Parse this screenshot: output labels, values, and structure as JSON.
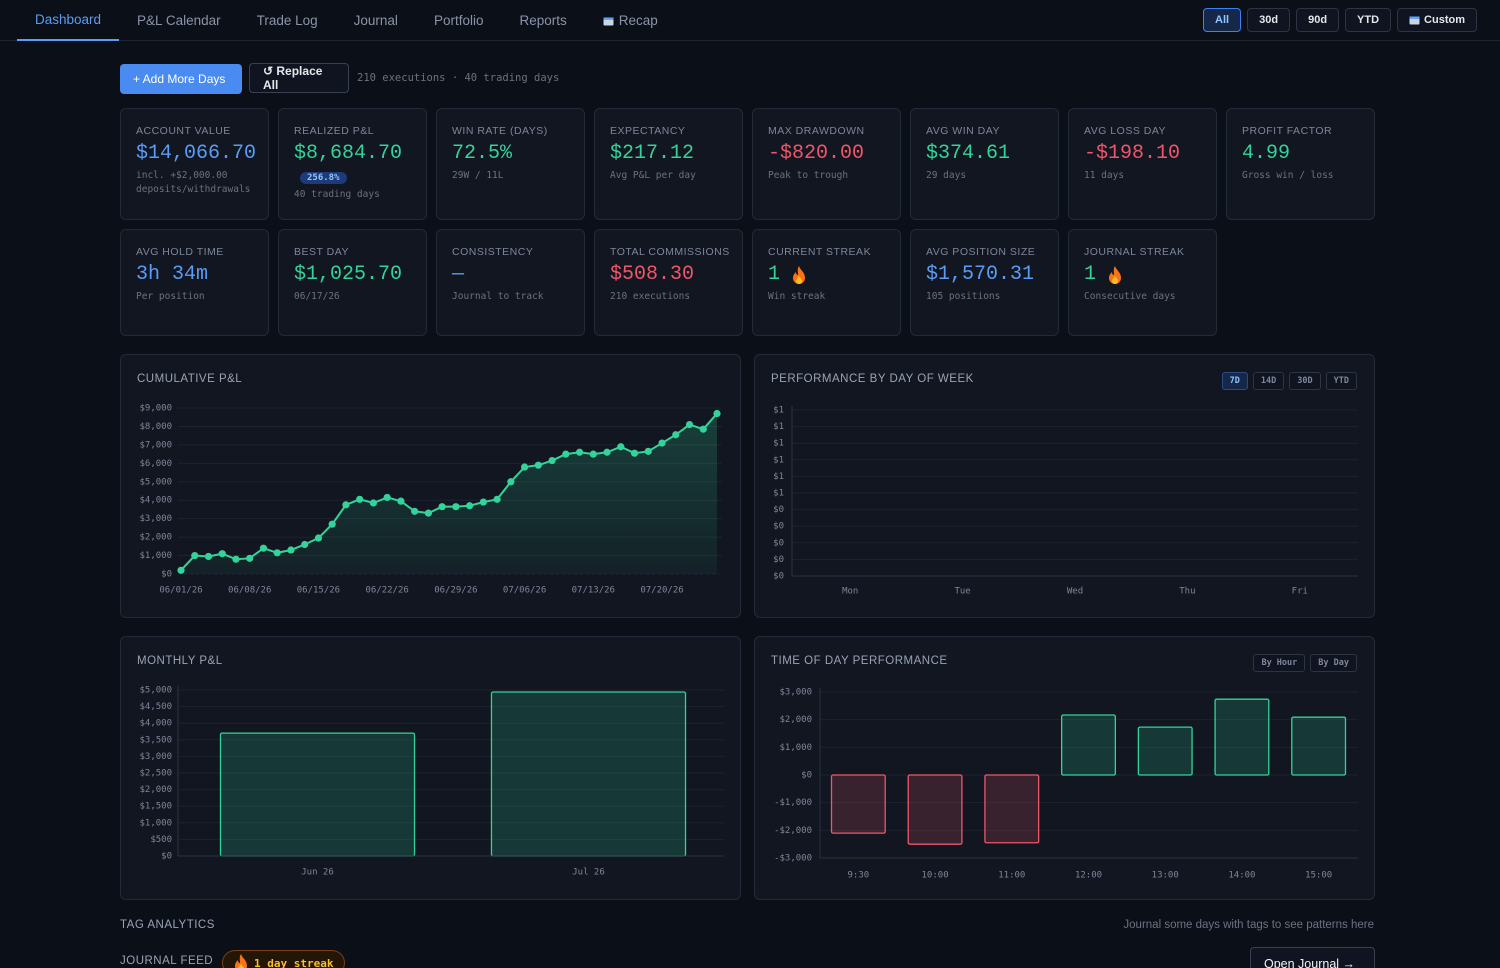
{
  "nav": {
    "tabs": [
      "Dashboard",
      "P&L Calendar",
      "Trade Log",
      "Journal",
      "Portfolio",
      "Reports",
      "Recap"
    ],
    "active_tab": 0,
    "ranges": [
      "All",
      "30d",
      "90d",
      "YTD",
      "Custom"
    ],
    "active_range": 0
  },
  "toolbar": {
    "add": "+ Add More Days",
    "replace": "↺ Replace All",
    "summary": "210 executions · 40 trading days"
  },
  "stats": [
    {
      "label": "ACCOUNT VALUE",
      "value": "$14,066.70",
      "sub": "incl. +$2,000.00 deposits/withdrawals",
      "color": "#5b9cf6"
    },
    {
      "label": "REALIZED P&L",
      "value": "$8,684.70",
      "badge": "256.8%",
      "sub": "40 trading days",
      "color": "#34d399"
    },
    {
      "label": "WIN RATE (DAYS)",
      "value": "72.5%",
      "sub": "29W / 11L",
      "color": "#34d399"
    },
    {
      "label": "EXPECTANCY",
      "value": "$217.12",
      "sub": "Avg P&L per day",
      "color": "#34d399"
    },
    {
      "label": "MAX DRAWDOWN",
      "value": "-$820.00",
      "sub": "Peak to trough",
      "color": "#f0566a"
    },
    {
      "label": "AVG WIN DAY",
      "value": "$374.61",
      "sub": "29 days",
      "color": "#34d399"
    },
    {
      "label": "AVG LOSS DAY",
      "value": "-$198.10",
      "sub": "11 days",
      "color": "#f0566a"
    },
    {
      "label": "PROFIT FACTOR",
      "value": "4.99",
      "sub": "Gross win / loss",
      "color": "#34d399"
    },
    {
      "label": "AVG HOLD TIME",
      "value": "3h 34m",
      "sub": "Per position",
      "color": "#5b9cf6"
    },
    {
      "label": "BEST DAY",
      "value": "$1,025.70",
      "sub": "06/17/26",
      "color": "#34d399"
    },
    {
      "label": "CONSISTENCY",
      "value": "—",
      "sub": "Journal to track",
      "color": "#5b9cf6"
    },
    {
      "label": "TOTAL COMMISSIONS",
      "value": "$508.30",
      "sub": "210 executions",
      "color": "#f0566a"
    },
    {
      "label": "CURRENT STREAK",
      "value": "1",
      "sub": "Win streak",
      "color": "#34d399"
    },
    {
      "label": "AVG POSITION SIZE",
      "value": "$1,570.31",
      "sub": "105 positions",
      "color": "#5b9cf6"
    },
    {
      "label": "JOURNAL STREAK",
      "value": "1",
      "sub": "Consecutive days",
      "color": "#34d399"
    }
  ],
  "chart_data": [
    {
      "type": "area",
      "title": "CUMULATIVE P&L",
      "color": "#34d399",
      "grid": true,
      "categories": [
        "06/01/26",
        null,
        null,
        null,
        null,
        "06/08/26",
        null,
        null,
        null,
        null,
        "06/15/26",
        null,
        null,
        null,
        null,
        "06/22/26",
        null,
        null,
        null,
        null,
        "06/29/26",
        null,
        null,
        null,
        null,
        "07/06/26",
        null,
        null,
        null,
        null,
        "07/13/26",
        null,
        null,
        null,
        null,
        "07/20/26",
        null,
        null,
        null,
        null
      ],
      "values": [
        200,
        1000,
        950,
        1100,
        800,
        850,
        1400,
        1150,
        1300,
        1600,
        1950,
        2700,
        3750,
        4050,
        3850,
        4150,
        3950,
        3400,
        3300,
        3650,
        3650,
        3700,
        3900,
        4050,
        5000,
        5800,
        5900,
        6150,
        6500,
        6600,
        6500,
        6600,
        6900,
        6550,
        6650,
        7100,
        7550,
        8100,
        7850,
        8700
      ],
      "ylim": [
        0,
        9000
      ],
      "yticks": [
        {
          "value": 0,
          "label": "$0"
        },
        {
          "value": 1000,
          "label": "$1,000"
        },
        {
          "value": 2000,
          "label": "$2,000"
        },
        {
          "value": 3000,
          "label": "$3,000"
        },
        {
          "value": 4000,
          "label": "$4,000"
        },
        {
          "value": 5000,
          "label": "$5,000"
        },
        {
          "value": 6000,
          "label": "$6,000"
        },
        {
          "value": 7000,
          "label": "$7,000"
        },
        {
          "value": 8000,
          "label": "$8,000"
        },
        {
          "value": 9000,
          "label": "$9,000"
        }
      ]
    },
    {
      "type": "bar",
      "title": "PERFORMANCE BY DAY OF WEEK",
      "color": "#34d399",
      "grid": true,
      "buttons": [
        "7D",
        "14D",
        "30D",
        "YTD"
      ],
      "active_button": 0,
      "categories": [
        "Mon",
        "Tue",
        "Wed",
        "Thu",
        "Fri"
      ],
      "values": [
        0,
        0,
        0,
        0,
        0
      ],
      "ylim": [
        0,
        1
      ],
      "yticks": [
        {
          "value": 0,
          "label": "$0"
        },
        {
          "value": 0.1,
          "label": "$0"
        },
        {
          "value": 0.2,
          "label": "$0"
        },
        {
          "value": 0.3,
          "label": "$0"
        },
        {
          "value": 0.4,
          "label": "$0"
        },
        {
          "value": 0.5,
          "label": "$1"
        },
        {
          "value": 0.6,
          "label": "$1"
        },
        {
          "value": 0.7,
          "label": "$1"
        },
        {
          "value": 0.8,
          "label": "$1"
        },
        {
          "value": 0.9,
          "label": "$1"
        },
        {
          "value": 1,
          "label": "$1"
        }
      ]
    },
    {
      "type": "bar",
      "title": "MONTHLY P&L",
      "color": "#34d399",
      "grid": true,
      "categories": [
        "Jun 26",
        "Jul 26"
      ],
      "values": [
        3700,
        4940
      ],
      "ylim": [
        0,
        5000
      ],
      "yticks": [
        {
          "value": 0,
          "label": "$0"
        },
        {
          "value": 500,
          "label": "$500"
        },
        {
          "value": 1000,
          "label": "$1,000"
        },
        {
          "value": 1500,
          "label": "$1,500"
        },
        {
          "value": 2000,
          "label": "$2,000"
        },
        {
          "value": 2500,
          "label": "$2,500"
        },
        {
          "value": 3000,
          "label": "$3,000"
        },
        {
          "value": 3500,
          "label": "$3,500"
        },
        {
          "value": 4000,
          "label": "$4,000"
        },
        {
          "value": 4500,
          "label": "$4,500"
        },
        {
          "value": 5000,
          "label": "$5,000"
        }
      ]
    },
    {
      "type": "bar",
      "title": "TIME OF DAY PERFORMANCE",
      "color": "#34d399",
      "negative_color": "#f0566a",
      "grid": true,
      "buttons": [
        "By Hour",
        "By Day"
      ],
      "categories": [
        "9:30",
        "10:00",
        "11:00",
        "12:00",
        "13:00",
        "14:00",
        "15:00"
      ],
      "values": [
        -2100,
        -2500,
        -2450,
        2170,
        1730,
        2740,
        2090
      ],
      "ylim": [
        -3000,
        3000
      ],
      "yticks": [
        {
          "value": -3000,
          "label": "-$3,000"
        },
        {
          "value": -2000,
          "label": "-$2,000"
        },
        {
          "value": -1000,
          "label": "-$1,000"
        },
        {
          "value": 0,
          "label": "$0"
        },
        {
          "value": 1000,
          "label": "$1,000"
        },
        {
          "value": 2000,
          "label": "$2,000"
        },
        {
          "value": 3000,
          "label": "$3,000"
        }
      ]
    }
  ],
  "tag_analytics": {
    "title": "TAG ANALYTICS",
    "hint": "Journal some days with tags to see patterns here"
  },
  "journal_feed": {
    "title": "JOURNAL FEED",
    "badge": "1 day streak",
    "button": "Open Journal →"
  }
}
